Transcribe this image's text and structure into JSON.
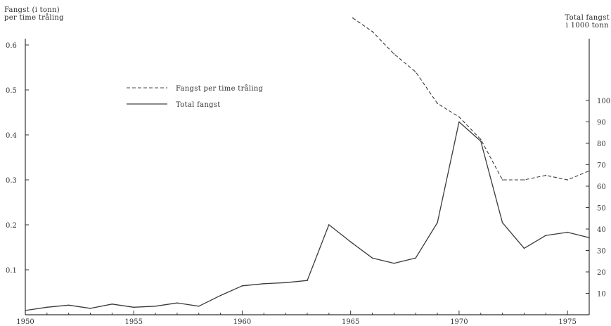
{
  "chart_data": {
    "type": "line",
    "left_axis_title": [
      "Fangst (i tonn)",
      "per time tråling"
    ],
    "right_axis_title": [
      "Total fangst",
      "i 1000 tonn"
    ],
    "x": {
      "range": [
        1950,
        1976
      ],
      "ticks": [
        1950,
        1955,
        1960,
        1965,
        1970,
        1975
      ],
      "tick_labels": [
        "1950",
        "1955",
        "1960",
        "1965",
        "1970",
        "1975"
      ]
    },
    "y_left": {
      "range": [
        0,
        0.65
      ],
      "ticks": [
        0.1,
        0.2,
        0.3,
        0.4,
        0.5,
        0.6
      ],
      "tick_labels": [
        "0.1",
        "0.2",
        "0.3",
        "0.4",
        "0.5",
        "0.6"
      ]
    },
    "y_right": {
      "range": [
        0,
        110
      ],
      "ticks": [
        10,
        20,
        30,
        40,
        50,
        60,
        70,
        80,
        90,
        100
      ],
      "tick_labels": [
        "10",
        "20",
        "30",
        "40",
        "50",
        "60",
        "70",
        "80",
        "90",
        "100"
      ]
    },
    "legend_position": "upper-left",
    "grid": false,
    "series": [
      {
        "name": "Fangst per time tråling",
        "axis": "left",
        "style": "dashed",
        "x": [
          1965.1,
          1966,
          1967,
          1968,
          1969,
          1970,
          1971,
          1972,
          1973,
          1974,
          1975,
          1976
        ],
        "values": [
          0.66,
          0.63,
          0.58,
          0.54,
          0.47,
          0.44,
          0.39,
          0.3,
          0.3,
          0.31,
          0.3,
          0.32
        ]
      },
      {
        "name": "Total fangst",
        "axis": "right",
        "style": "solid",
        "x": [
          1950,
          1951,
          1952,
          1953,
          1954,
          1955,
          1956,
          1957,
          1958,
          1959,
          1960,
          1961,
          1962,
          1963,
          1964,
          1965,
          1966,
          1967,
          1968,
          1969,
          1970,
          1971,
          1972,
          1973,
          1974,
          1975,
          1976
        ],
        "values": [
          2,
          3.5,
          4.5,
          3,
          5,
          3.5,
          4,
          5.5,
          4,
          9,
          13.5,
          14.5,
          15,
          16,
          42,
          34,
          26.5,
          24,
          26.5,
          43,
          90,
          81,
          43,
          31,
          37,
          38.5,
          36
        ]
      }
    ]
  }
}
